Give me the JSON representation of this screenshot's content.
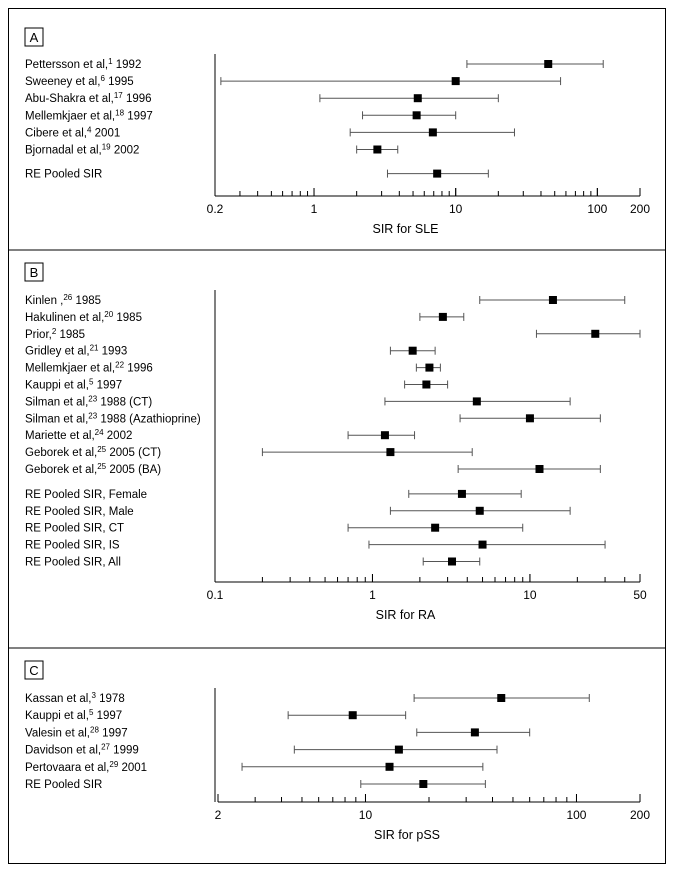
{
  "chart_data": [
    {
      "panel_label": "A",
      "type": "forest",
      "scale": "log",
      "xlim": [
        0.2,
        200
      ],
      "xticks": [
        "0.2",
        "1",
        "10",
        "100",
        "200"
      ],
      "xlabel": "SIR for SLE",
      "rows": [
        {
          "study": "Pettersson et al,",
          "ref": "1",
          "year": "1992",
          "est": 45,
          "lo": 12,
          "hi": 110
        },
        {
          "study": "Sweeney et al,",
          "ref": "6",
          "year": "1995",
          "est": 10,
          "lo": 0.22,
          "hi": 55
        },
        {
          "study": "Abu-Shakra et al,",
          "ref": "17",
          "year": "1996",
          "est": 5.4,
          "lo": 1.1,
          "hi": 20
        },
        {
          "study": "Mellemkjaer et al,",
          "ref": "18",
          "year": "1997",
          "est": 5.3,
          "lo": 2.2,
          "hi": 10
        },
        {
          "study": "Cibere et al,",
          "ref": "4",
          "year": "2001",
          "est": 6.9,
          "lo": 1.8,
          "hi": 26
        },
        {
          "study": "Bjornadal et al,",
          "ref": "19",
          "year": "2002",
          "est": 2.8,
          "lo": 2.0,
          "hi": 3.9
        },
        {
          "study": "RE Pooled SIR",
          "ref": "",
          "year": "",
          "est": 7.4,
          "lo": 3.3,
          "hi": 17,
          "gap": true
        }
      ]
    },
    {
      "panel_label": "B",
      "type": "forest",
      "scale": "log",
      "xlim": [
        0.1,
        50
      ],
      "xticks": [
        "0.1",
        "1",
        "10",
        "50"
      ],
      "xlabel": "SIR for RA",
      "rows": [
        {
          "study": "Kinlen ,",
          "ref": "26",
          "year": "1985",
          "est": 14,
          "lo": 4.8,
          "hi": 40
        },
        {
          "study": "Hakulinen et al,",
          "ref": "20",
          "year": "1985",
          "est": 2.8,
          "lo": 2.0,
          "hi": 3.8
        },
        {
          "study": "Prior,",
          "ref": "2",
          "year": "1985",
          "est": 26,
          "lo": 11,
          "hi": 50
        },
        {
          "study": "Gridley et al,",
          "ref": "21",
          "year": "1993",
          "est": 1.8,
          "lo": 1.3,
          "hi": 2.5
        },
        {
          "study": "Mellemkjaer et al,",
          "ref": "22",
          "year": "1996",
          "est": 2.3,
          "lo": 1.9,
          "hi": 2.7
        },
        {
          "study": "Kauppi et al,",
          "ref": "5",
          "year": "1997",
          "est": 2.2,
          "lo": 1.6,
          "hi": 3.0
        },
        {
          "study": "Silman et al,",
          "ref": "23",
          "year": "1988 (CT)",
          "est": 4.6,
          "lo": 1.2,
          "hi": 18
        },
        {
          "study": "Silman et al,",
          "ref": "23",
          "year": "1988 (Azathioprine)",
          "est": 10,
          "lo": 3.6,
          "hi": 28
        },
        {
          "study": "Mariette et al,",
          "ref": "24",
          "year": "2002",
          "est": 1.2,
          "lo": 0.7,
          "hi": 1.85
        },
        {
          "study": "Geborek et al,",
          "ref": "25",
          "year": "2005 (CT)",
          "est": 1.3,
          "lo": 0.2,
          "hi": 4.3
        },
        {
          "study": "Geborek et al,",
          "ref": "25",
          "year": "2005 (BA)",
          "est": 11.5,
          "lo": 3.5,
          "hi": 28
        },
        {
          "study": "RE Pooled SIR, Female",
          "ref": "",
          "year": "",
          "est": 3.7,
          "lo": 1.7,
          "hi": 8.8,
          "gap": true
        },
        {
          "study": "RE Pooled SIR, Male",
          "ref": "",
          "year": "",
          "est": 4.8,
          "lo": 1.3,
          "hi": 18
        },
        {
          "study": "RE Pooled SIR, CT",
          "ref": "",
          "year": "",
          "est": 2.5,
          "lo": 0.7,
          "hi": 9
        },
        {
          "study": "RE Pooled SIR, IS",
          "ref": "",
          "year": "",
          "est": 5.0,
          "lo": 0.95,
          "hi": 30
        },
        {
          "study": "RE Pooled SIR, All",
          "ref": "",
          "year": "",
          "est": 3.2,
          "lo": 2.1,
          "hi": 4.8
        }
      ]
    },
    {
      "panel_label": "C",
      "type": "forest",
      "scale": "log",
      "xlim": [
        2,
        200
      ],
      "xticks": [
        "2",
        "10",
        "100",
        "200"
      ],
      "xlabel": "SIR for pSS",
      "rows": [
        {
          "study": "Kassan et al,",
          "ref": "3",
          "year": "1978",
          "est": 44,
          "lo": 17,
          "hi": 115
        },
        {
          "study": "Kauppi et al,",
          "ref": "5",
          "year": "1997",
          "est": 8.7,
          "lo": 4.3,
          "hi": 15.5
        },
        {
          "study": "Valesin et al,",
          "ref": "28",
          "year": "1997",
          "est": 33,
          "lo": 17.5,
          "hi": 60
        },
        {
          "study": "Davidson et al,",
          "ref": "27",
          "year": "1999",
          "est": 14.4,
          "lo": 4.6,
          "hi": 42
        },
        {
          "study": "Pertovaara et al,",
          "ref": "29",
          "year": "2001",
          "est": 13,
          "lo": 2.6,
          "hi": 36
        },
        {
          "study": "RE Pooled SIR",
          "ref": "",
          "year": "",
          "est": 18.8,
          "lo": 9.5,
          "hi": 37
        }
      ]
    }
  ]
}
